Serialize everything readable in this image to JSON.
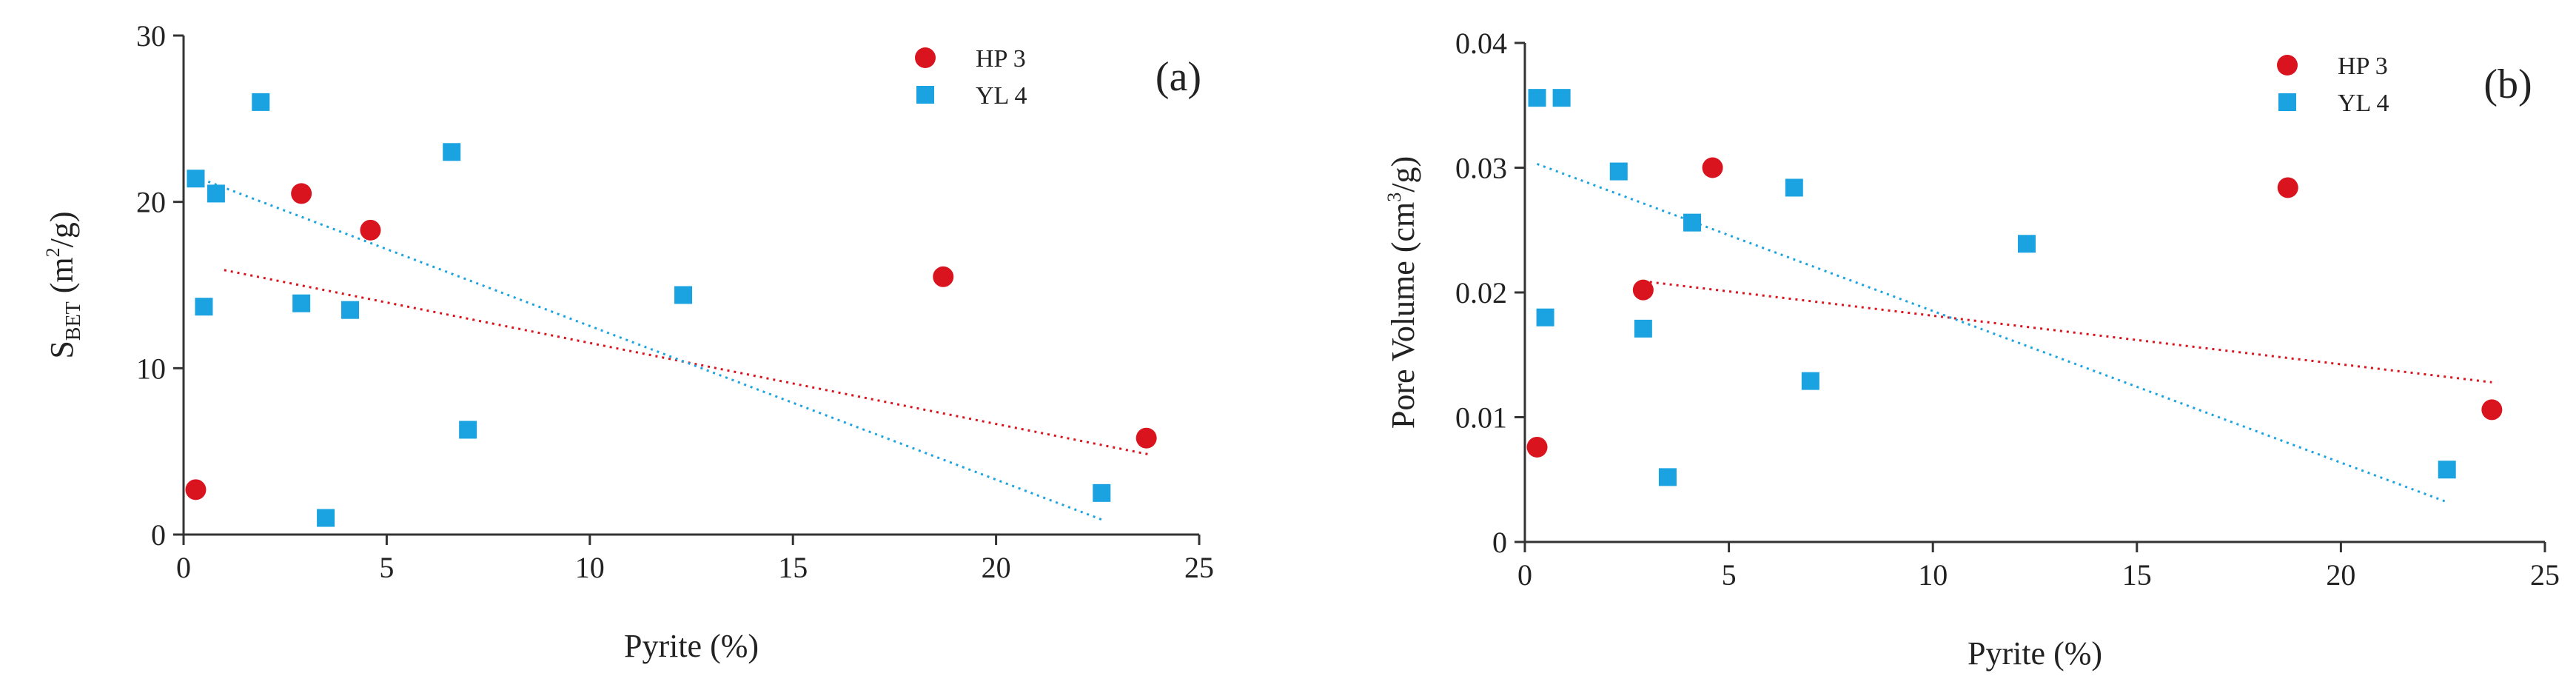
{
  "chart_data": [
    {
      "type": "scatter",
      "panel": "(a)",
      "title": "",
      "xlabel": "Pyrite (%)",
      "ylabel_main": "S",
      "ylabel_sub": "BET",
      "ylabel_rest": " (m",
      "ylabel_sup": "2",
      "ylabel_end": "/g)",
      "xlim": [
        0,
        25
      ],
      "ylim": [
        0,
        30
      ],
      "xticks": [
        "0",
        "5",
        "10",
        "15",
        "20",
        "25"
      ],
      "yticks": [
        "0",
        "10",
        "20",
        "30"
      ],
      "legend_position": "top-right",
      "series": [
        {
          "name": "HP 3",
          "marker": "circle",
          "color": "#d9141e",
          "points": [
            [
              0.3,
              2.7
            ],
            [
              2.9,
              20.5
            ],
            [
              4.6,
              18.3
            ],
            [
              18.7,
              15.5
            ],
            [
              23.7,
              5.8
            ]
          ],
          "trend": [
            [
              1.0,
              15.9
            ],
            [
              23.8,
              4.8
            ]
          ]
        },
        {
          "name": "YL 4",
          "marker": "square",
          "color": "#1aa3e0",
          "points": [
            [
              0.3,
              21.4
            ],
            [
              0.5,
              13.7
            ],
            [
              0.8,
              20.5
            ],
            [
              1.9,
              26.0
            ],
            [
              2.9,
              13.9
            ],
            [
              3.5,
              1.0
            ],
            [
              4.1,
              13.5
            ],
            [
              6.6,
              23.0
            ],
            [
              7.0,
              6.3
            ],
            [
              12.3,
              14.4
            ],
            [
              22.6,
              2.5
            ]
          ],
          "trend": [
            [
              0.3,
              21.5
            ],
            [
              22.6,
              0.9
            ]
          ]
        }
      ]
    },
    {
      "type": "scatter",
      "panel": "(b)",
      "title": "",
      "xlabel": "Pyrite (%)",
      "ylabel_main": "Pore Volume (cm",
      "ylabel_sup": "3",
      "ylabel_end": "/g)",
      "xlim": [
        0,
        25
      ],
      "ylim": [
        0,
        0.04
      ],
      "xticks": [
        "0",
        "5",
        "10",
        "15",
        "20",
        "25"
      ],
      "yticks": [
        "0",
        "0.01",
        "0.02",
        "0.03",
        "0.04"
      ],
      "legend_position": "top-right",
      "series": [
        {
          "name": "HP 3",
          "marker": "circle",
          "color": "#d9141e",
          "points": [
            [
              0.3,
              0.0076
            ],
            [
              2.9,
              0.0202
            ],
            [
              4.6,
              0.03
            ],
            [
              18.7,
              0.0284
            ],
            [
              23.7,
              0.0106
            ]
          ],
          "trend": [
            [
              2.9,
              0.0209
            ],
            [
              23.7,
              0.0128
            ]
          ]
        },
        {
          "name": "YL 4",
          "marker": "square",
          "color": "#1aa3e0",
          "points": [
            [
              0.3,
              0.0356
            ],
            [
              0.5,
              0.018
            ],
            [
              0.9,
              0.0356
            ],
            [
              2.3,
              0.0297
            ],
            [
              2.9,
              0.0171
            ],
            [
              3.5,
              0.0052
            ],
            [
              4.1,
              0.0256
            ],
            [
              6.6,
              0.0284
            ],
            [
              7.0,
              0.0129
            ],
            [
              12.3,
              0.0239
            ],
            [
              22.6,
              0.0058
            ]
          ],
          "trend": [
            [
              0.3,
              0.0303
            ],
            [
              22.6,
              0.0032
            ]
          ]
        }
      ]
    }
  ]
}
